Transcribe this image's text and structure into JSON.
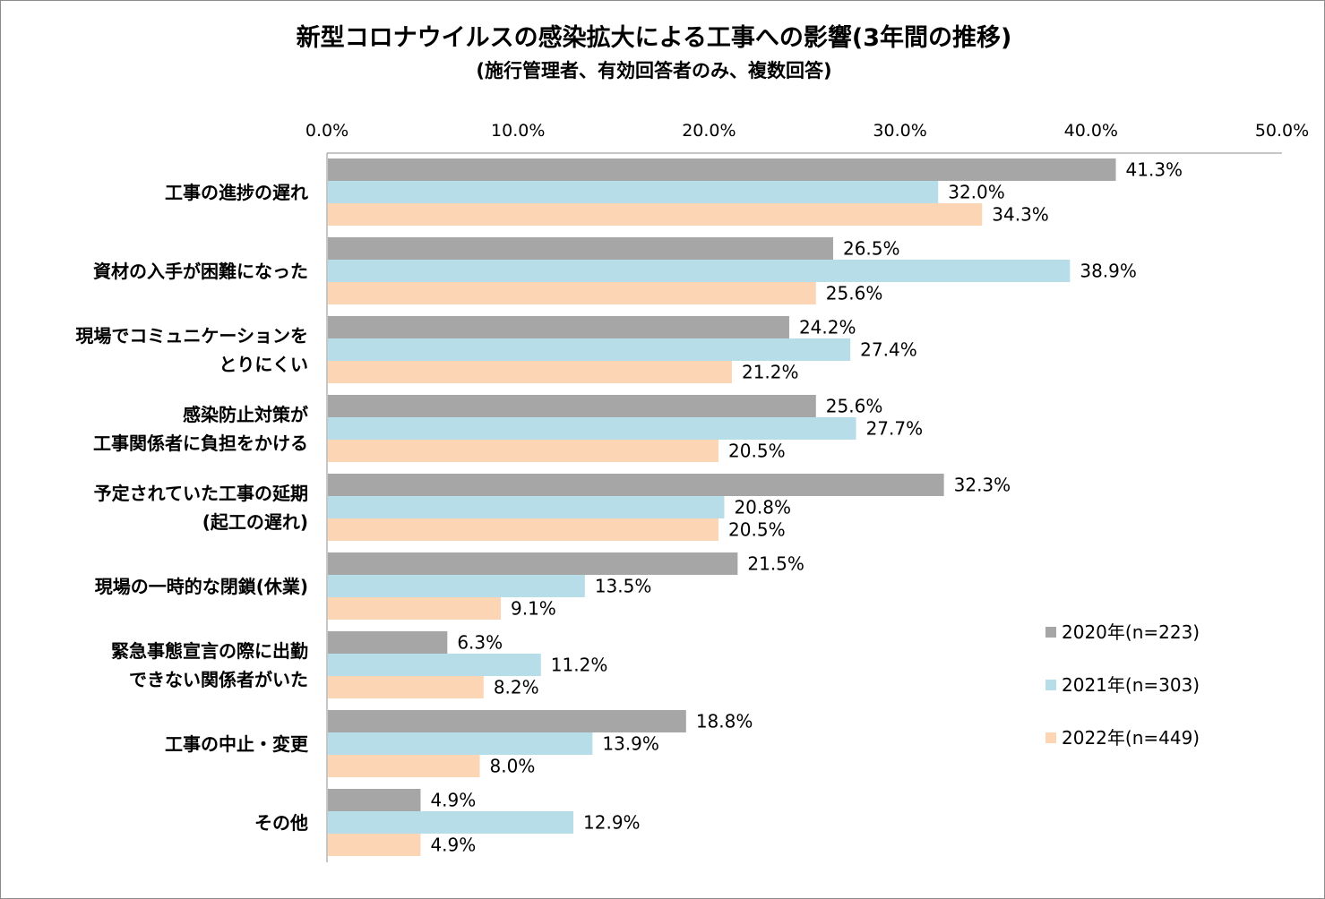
{
  "chart_data": {
    "type": "bar",
    "orientation": "horizontal",
    "title": "新型コロナウイルスの感染拡大による工事への影響(3年間の推移)",
    "subtitle": "(施行管理者、有効回答者のみ、複数回答)",
    "xlim": [
      0,
      50
    ],
    "xticks": [
      "0.0%",
      "10.0%",
      "20.0%",
      "30.0%",
      "40.0%",
      "50.0%"
    ],
    "axis_position": "top",
    "legend_position": "right",
    "grid": false,
    "categories": [
      [
        "工事の進捗の遅れ"
      ],
      [
        "資材の入手が困難になった"
      ],
      [
        "現場でコミュニケーションを",
        "とりにくい"
      ],
      [
        "感染防止対策が",
        "工事関係者に負担をかける"
      ],
      [
        "予定されていた工事の延期",
        "(起工の遅れ)"
      ],
      [
        "現場の一時的な閉鎖(休業)"
      ],
      [
        "緊急事態宣言の際に出勤",
        "できない関係者がいた"
      ],
      [
        "工事の中止・変更"
      ],
      [
        "その他"
      ]
    ],
    "series": [
      {
        "name": "2020年(n=223)",
        "color": "#a6a6a6",
        "values": [
          41.3,
          26.5,
          24.2,
          25.6,
          32.3,
          21.5,
          6.3,
          18.8,
          4.9
        ]
      },
      {
        "name": "2021年(n=303)",
        "color": "#b7dde8",
        "values": [
          32.0,
          38.9,
          27.4,
          27.7,
          20.8,
          13.5,
          11.2,
          13.9,
          12.9
        ]
      },
      {
        "name": "2022年(n=449)",
        "color": "#fcd5b5",
        "values": [
          34.3,
          25.6,
          21.2,
          20.5,
          20.5,
          9.1,
          8.2,
          8.0,
          4.9
        ]
      }
    ]
  }
}
